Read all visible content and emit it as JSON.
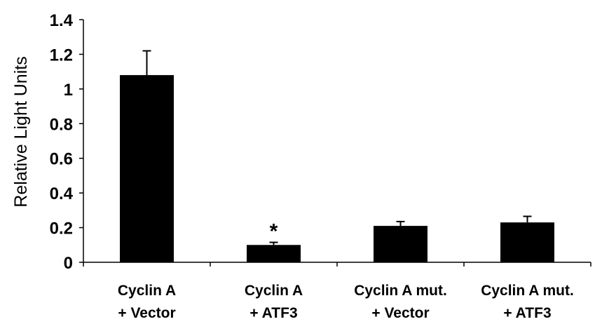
{
  "chart_data": {
    "type": "bar",
    "title": "",
    "xlabel": "",
    "ylabel": "Relative Light Units",
    "ylim": [
      0,
      1.4
    ],
    "yticks": [
      "0",
      "0.2",
      "0.4",
      "0.6",
      "0.8",
      "1",
      "1.2",
      "1.4"
    ],
    "categories": [
      [
        "Cyclin A",
        "+ Vector"
      ],
      [
        "Cyclin A",
        "+ ATF3"
      ],
      [
        "Cyclin A mut.",
        "+ Vector"
      ],
      [
        "Cyclin A mut.",
        "+ ATF3"
      ]
    ],
    "values": [
      1.08,
      0.1,
      0.21,
      0.23
    ],
    "error_upper": [
      0.14,
      0.015,
      0.025,
      0.035
    ],
    "annotations": [
      {
        "category_index": 1,
        "text": "*"
      }
    ],
    "bar_color": "#000000",
    "grid": false,
    "legend": "none"
  }
}
